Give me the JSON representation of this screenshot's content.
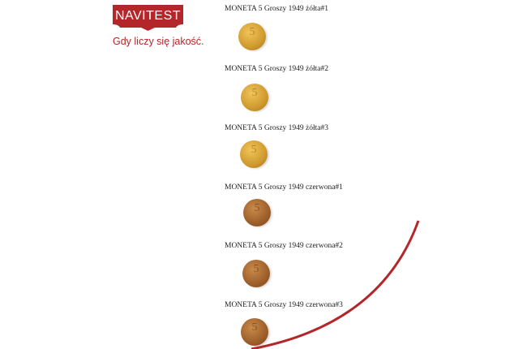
{
  "brand": {
    "name": "NAVITEST",
    "tagline": "Gdy liczy się jakość.",
    "color": "#b3262a"
  },
  "items": [
    {
      "title": "MONETA 5 Groszy 1949 żółta#1",
      "type": "gold",
      "coin_label": "5"
    },
    {
      "title": "MONETA 5 Groszy 1949 żółta#2",
      "type": "gold",
      "coin_label": "5"
    },
    {
      "title": "MONETA 5 Groszy 1949 żółta#3",
      "type": "gold",
      "coin_label": "5"
    },
    {
      "title": "MONETA 5 Groszy 1949 czerwona#1",
      "type": "red",
      "coin_label": "5"
    },
    {
      "title": "MONETA 5 Groszy 1949 czerwona#2",
      "type": "red",
      "coin_label": "5"
    },
    {
      "title": "MONETA 5 Groszy 1949 czerwona#3",
      "type": "red",
      "coin_label": "5"
    }
  ]
}
